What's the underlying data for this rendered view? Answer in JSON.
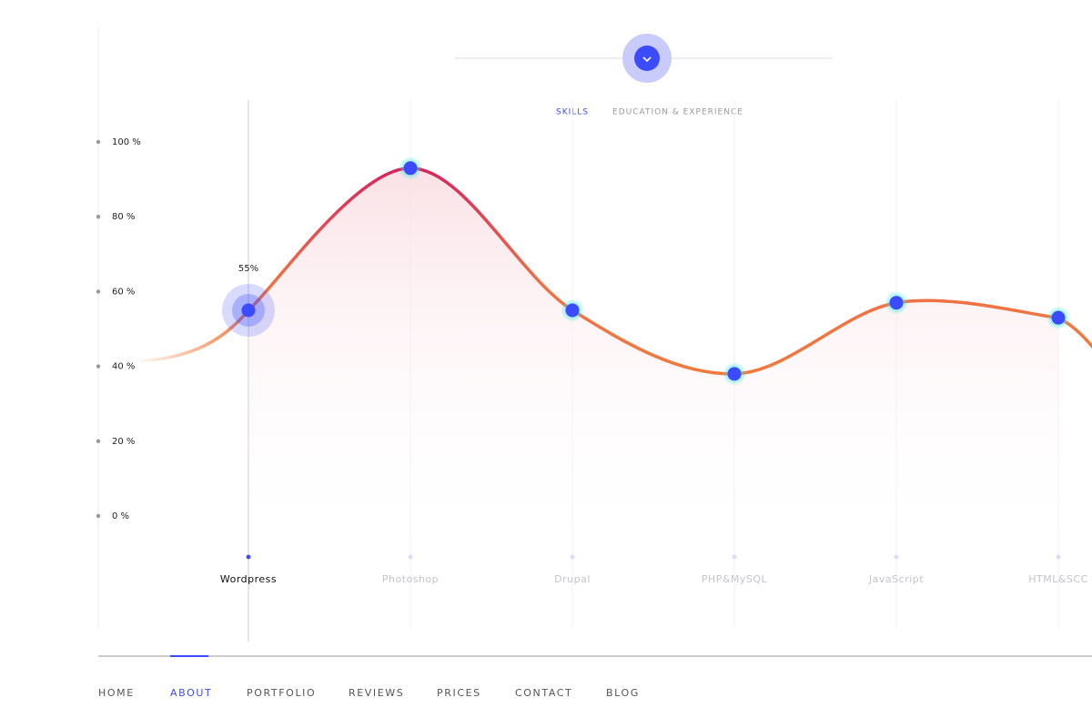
{
  "tabs": [
    "SKILLS",
    "EDUCATION & EXPERIENCE"
  ],
  "nav": [
    "HOME",
    "ABOUT",
    "PORTFOLIO",
    "REVIEWS",
    "PRICES",
    "CONTACT",
    "BLOG"
  ],
  "chart_data": {
    "type": "line",
    "categories": [
      "Wordpress",
      "Photoshop",
      "Drupal",
      "PHP&MySQL",
      "JavaScript",
      "HTML&SCC"
    ],
    "values": [
      55,
      93,
      55,
      38,
      57,
      53
    ],
    "value_labels": [
      "55%",
      null,
      null,
      null,
      null,
      null
    ],
    "color": "#3d4bff",
    "ylim": [
      0,
      100
    ],
    "yticks": [
      {
        "value": 0,
        "label": "0 %"
      },
      {
        "value": 20,
        "label": "20 %"
      },
      {
        "value": 40,
        "label": "40 %"
      },
      {
        "value": 60,
        "label": "60 %"
      },
      {
        "value": 80,
        "label": "80 %"
      },
      {
        "value": 100,
        "label": "100 %"
      }
    ]
  }
}
